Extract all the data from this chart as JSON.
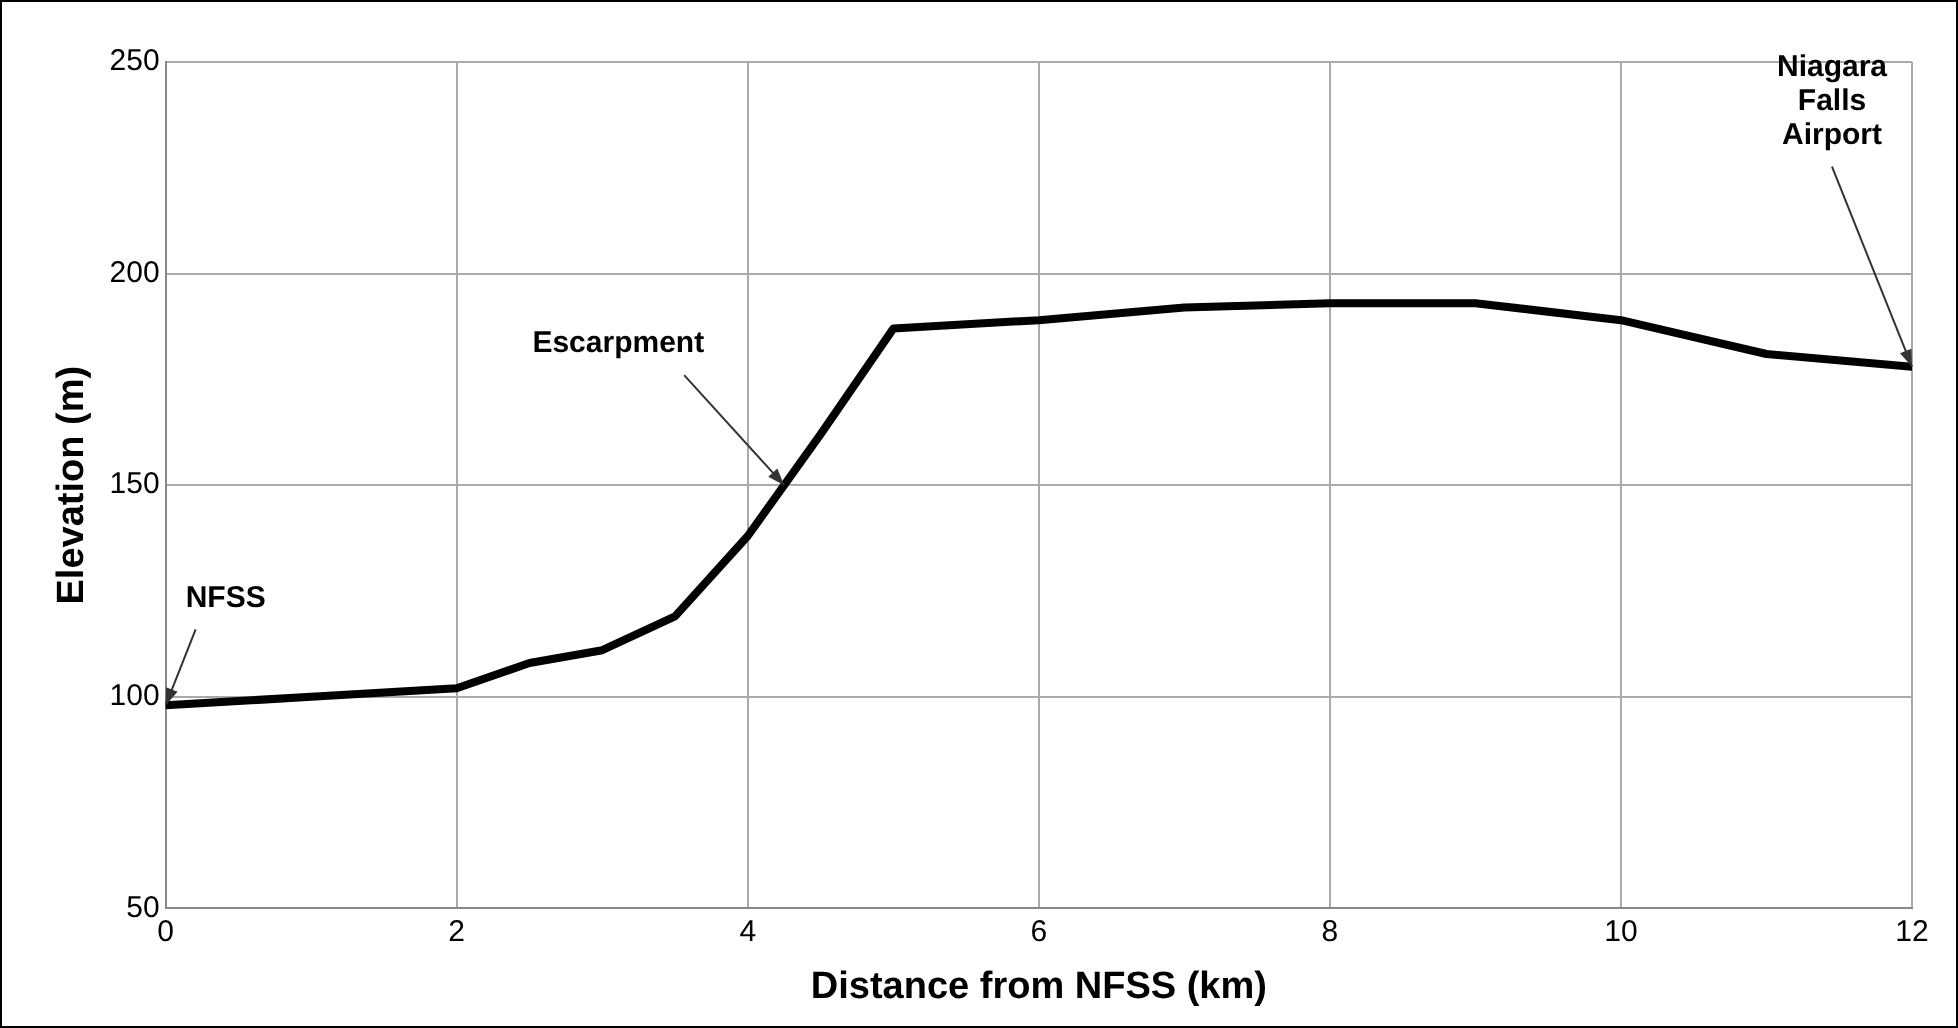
{
  "chart_data": {
    "type": "line",
    "xlabel": "Distance from NFSS (km)",
    "ylabel": "Elevation (m)",
    "x": [
      0,
      1,
      2,
      2.5,
      3,
      3.5,
      4,
      4.5,
      5,
      6,
      7,
      8,
      9,
      10,
      11,
      12
    ],
    "series": [
      {
        "color": "#000000",
        "values": [
          98,
          100,
          102,
          108,
          111,
          119,
          138,
          162,
          187,
          189,
          192,
          193,
          193,
          189,
          181,
          178
        ]
      }
    ],
    "xlim": [
      0,
      12
    ],
    "xticks": [
      0,
      2,
      4,
      6,
      8,
      10,
      12
    ],
    "ylim": [
      50,
      250
    ],
    "yticks": [
      50,
      100,
      150,
      200,
      250
    ],
    "grid": true,
    "legend": false,
    "marker": "none",
    "line_style": "solid",
    "annotations": [
      {
        "text": "NFSS",
        "x": 0,
        "y": 98
      },
      {
        "text": "Escarpment",
        "x": 4.25,
        "y": 150
      },
      {
        "text": "Niagara\nFalls\nAirport",
        "x": 12,
        "y": 178
      }
    ]
  }
}
